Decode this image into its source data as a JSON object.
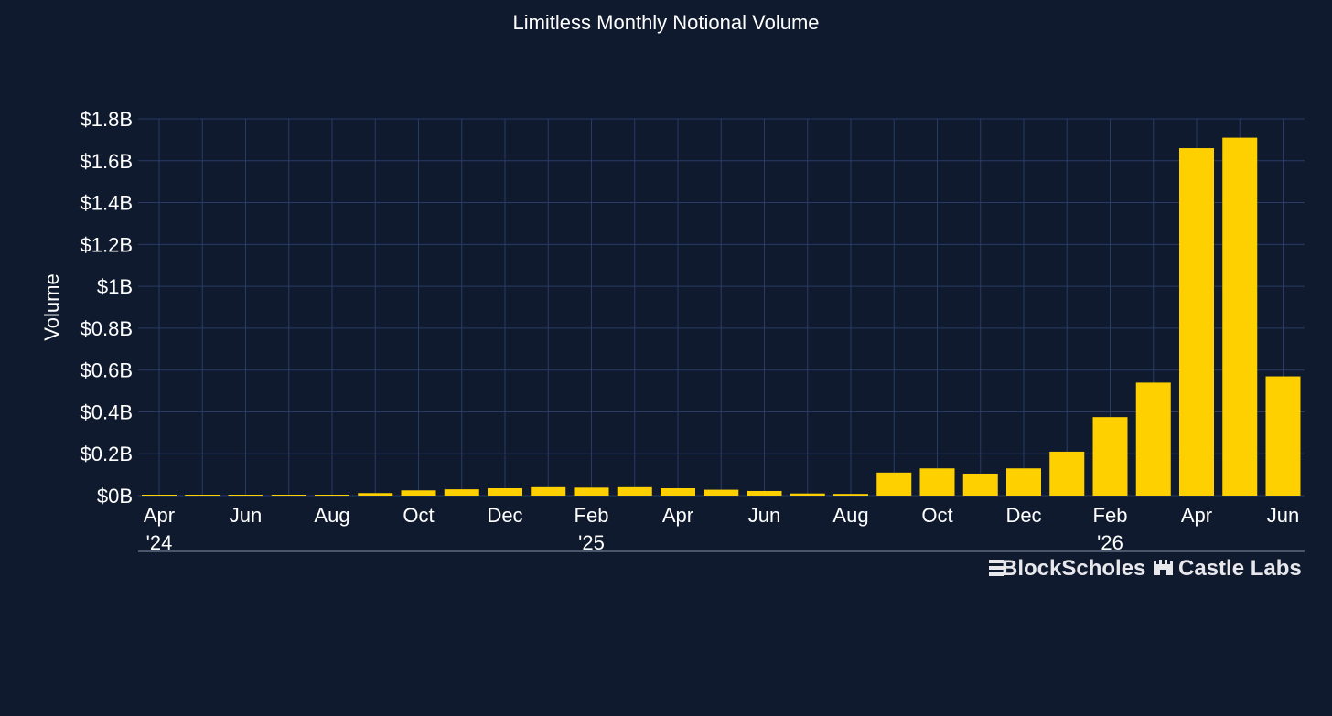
{
  "chart_data": {
    "type": "bar",
    "title": "Limitless Monthly Notional Volume",
    "xlabel": "",
    "ylabel": "Volume",
    "ylim": [
      0,
      1.8
    ],
    "y_unit": "billions USD",
    "yticks": [
      "$0B",
      "$0.2B",
      "$0.4B",
      "$0.6B",
      "$0.8B",
      "$1B",
      "$1.2B",
      "$1.4B",
      "$1.6B",
      "$1.8B"
    ],
    "grid": true,
    "categories": [
      "2024-04",
      "2024-05",
      "2024-06",
      "2024-07",
      "2024-08",
      "2024-09",
      "2024-10",
      "2024-11",
      "2024-12",
      "2025-01",
      "2025-02",
      "2025-03",
      "2025-04",
      "2025-05",
      "2025-06",
      "2025-07",
      "2025-08",
      "2025-09",
      "2025-10",
      "2025-11",
      "2025-12",
      "2026-01",
      "2026-02",
      "2026-03",
      "2026-04",
      "2026-05",
      "2026-06"
    ],
    "values": [
      0.0,
      0.0,
      0.0,
      0.0,
      0.0,
      0.012,
      0.025,
      0.03,
      0.035,
      0.04,
      0.038,
      0.04,
      0.035,
      0.028,
      0.022,
      0.01,
      0.008,
      0.11,
      0.13,
      0.105,
      0.13,
      0.21,
      0.375,
      0.54,
      1.66,
      1.71,
      0.57
    ],
    "xtick_labels": [
      {
        "month": "2024-04",
        "line1": "Apr",
        "line2": "'24"
      },
      {
        "month": "2024-06",
        "line1": "Jun",
        "line2": ""
      },
      {
        "month": "2024-08",
        "line1": "Aug",
        "line2": ""
      },
      {
        "month": "2024-10",
        "line1": "Oct",
        "line2": ""
      },
      {
        "month": "2024-12",
        "line1": "Dec",
        "line2": ""
      },
      {
        "month": "2025-02",
        "line1": "Feb",
        "line2": "'25"
      },
      {
        "month": "2025-04",
        "line1": "Apr",
        "line2": ""
      },
      {
        "month": "2025-06",
        "line1": "Jun",
        "line2": ""
      },
      {
        "month": "2025-08",
        "line1": "Aug",
        "line2": ""
      },
      {
        "month": "2025-10",
        "line1": "Oct",
        "line2": ""
      },
      {
        "month": "2025-12",
        "line1": "Dec",
        "line2": ""
      },
      {
        "month": "2026-02",
        "line1": "Feb",
        "line2": "'26"
      },
      {
        "month": "2026-04",
        "line1": "Apr",
        "line2": ""
      },
      {
        "month": "2026-06",
        "line1": "Jun",
        "line2": ""
      }
    ],
    "colors": {
      "background": "#0f1a2e",
      "bar": "#ffd000",
      "grid": "#2a3a66",
      "text": "#ffffff"
    }
  },
  "logos": {
    "block_scholes": "BlockScholes",
    "castle_labs": "Castle Labs"
  }
}
